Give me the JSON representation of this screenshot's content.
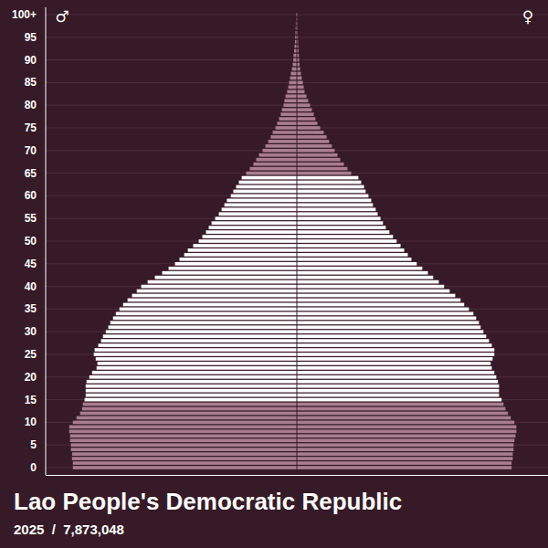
{
  "chart_data": {
    "type": "bar",
    "orientation": "horizontal",
    "title": "Lao People's Democratic Republic",
    "subtitle": "2025  /  7,873,048",
    "categories": [
      0,
      1,
      2,
      3,
      4,
      5,
      6,
      7,
      8,
      9,
      10,
      11,
      12,
      13,
      14,
      15,
      16,
      17,
      18,
      19,
      20,
      21,
      22,
      23,
      24,
      25,
      26,
      27,
      28,
      29,
      30,
      31,
      32,
      33,
      34,
      35,
      36,
      37,
      38,
      39,
      40,
      41,
      42,
      43,
      44,
      45,
      46,
      47,
      48,
      49,
      50,
      51,
      52,
      53,
      54,
      55,
      56,
      57,
      58,
      59,
      60,
      61,
      62,
      63,
      64,
      65,
      66,
      67,
      68,
      69,
      70,
      71,
      72,
      73,
      74,
      75,
      76,
      77,
      78,
      79,
      80,
      81,
      82,
      83,
      84,
      85,
      86,
      87,
      88,
      89,
      90,
      91,
      92,
      93,
      94,
      95,
      96,
      97,
      98,
      99,
      "100+"
    ],
    "series": [
      {
        "name": "♂",
        "values": [
          80100,
          80100,
          80400,
          80400,
          80800,
          80800,
          81100,
          81100,
          81400,
          81400,
          80100,
          78800,
          77500,
          76800,
          76500,
          75900,
          75500,
          75500,
          75500,
          75200,
          74200,
          73200,
          71600,
          71300,
          71900,
          72600,
          72300,
          71000,
          70000,
          69300,
          68300,
          67400,
          66700,
          65700,
          64700,
          63400,
          62100,
          60500,
          58900,
          57200,
          55600,
          53300,
          50700,
          48100,
          45800,
          43500,
          41900,
          40200,
          38900,
          37000,
          35000,
          33700,
          32400,
          31400,
          30400,
          29100,
          27800,
          26800,
          25800,
          24900,
          23500,
          22600,
          21600,
          20600,
          19600,
          18000,
          16700,
          15400,
          14400,
          13400,
          12100,
          11100,
          10100,
          9200,
          8500,
          7500,
          6900,
          6200,
          5600,
          5200,
          4600,
          4300,
          3900,
          3300,
          2900,
          2600,
          2300,
          2000,
          1600,
          1300,
          1100,
          1000,
          800,
          650,
          520,
          420,
          330,
          260,
          200,
          130,
          160
        ],
        "colors": [
          "#a87d90",
          "#a87d90",
          "#a87d90",
          "#a87d90",
          "#a87d90",
          "#a87d90",
          "#a87d90",
          "#a87d90",
          "#a87d90",
          "#a87d90",
          "#a87d90",
          "#a87d90",
          "#a87d90",
          "#a87d90",
          "#a87d90",
          "#ffffff",
          "#ffffff",
          "#ffffff",
          "#ffffff",
          "#ffffff",
          "#ffffff",
          "#ffffff",
          "#ffffff",
          "#ffffff",
          "#ffffff",
          "#ffffff",
          "#ffffff",
          "#ffffff",
          "#ffffff",
          "#ffffff",
          "#ffffff",
          "#ffffff",
          "#ffffff",
          "#ffffff",
          "#ffffff",
          "#ffffff",
          "#ffffff",
          "#ffffff",
          "#ffffff",
          "#ffffff",
          "#ffffff",
          "#ffffff",
          "#ffffff",
          "#ffffff",
          "#ffffff",
          "#ffffff",
          "#ffffff",
          "#ffffff",
          "#ffffff",
          "#ffffff",
          "#ffffff",
          "#ffffff",
          "#ffffff",
          "#ffffff",
          "#ffffff",
          "#ffffff",
          "#ffffff",
          "#ffffff",
          "#ffffff",
          "#ffffff",
          "#ffffff",
          "#ffffff",
          "#ffffff",
          "#ffffff",
          "#ffffff",
          "#a87d90",
          "#a87d90",
          "#a87d90",
          "#a87d90",
          "#a87d90",
          "#a87d90",
          "#a87d90",
          "#a87d90",
          "#a87d90",
          "#a87d90",
          "#a87d90",
          "#a87d90",
          "#a87d90",
          "#a87d90",
          "#a87d90",
          "#a87d90",
          "#a87d90",
          "#a87d90",
          "#a87d90",
          "#a87d90",
          "#a87d90",
          "#a87d90",
          "#a87d90",
          "#a87d90",
          "#a87d90",
          "#a87d90",
          "#a87d90",
          "#a87d90",
          "#a87d90",
          "#a87d90",
          "#a87d90",
          "#a87d90",
          "#a87d90",
          "#a87d90",
          "#a87d90",
          "#a87d90"
        ]
      },
      {
        "name": "♀",
        "values": [
          76800,
          76800,
          77200,
          77200,
          77500,
          77500,
          77800,
          78200,
          78500,
          78500,
          77800,
          76500,
          75500,
          74600,
          73900,
          73200,
          72300,
          72300,
          72300,
          71900,
          71300,
          70600,
          69700,
          69300,
          70000,
          70600,
          70600,
          69700,
          68700,
          67700,
          66700,
          65700,
          65100,
          64100,
          63100,
          61500,
          59800,
          58500,
          56600,
          54600,
          52600,
          50700,
          48700,
          46800,
          44800,
          42800,
          40900,
          39600,
          38300,
          37000,
          35600,
          34300,
          33000,
          31700,
          30700,
          29800,
          28800,
          28100,
          27100,
          26500,
          25500,
          24500,
          23900,
          22900,
          21900,
          19300,
          18000,
          16700,
          15400,
          14400,
          13400,
          12400,
          11400,
          10500,
          9500,
          8200,
          7200,
          6500,
          5900,
          5200,
          4600,
          3900,
          3300,
          2600,
          2300,
          2000,
          1600,
          1300,
          1000,
          800,
          650,
          560,
          460,
          360,
          290,
          230,
          160,
          130,
          100,
          65,
          100
        ],
        "colors": [
          "#a87d90",
          "#a87d90",
          "#a87d90",
          "#a87d90",
          "#a87d90",
          "#a87d90",
          "#a87d90",
          "#a87d90",
          "#a87d90",
          "#a87d90",
          "#a87d90",
          "#a87d90",
          "#a87d90",
          "#a87d90",
          "#a87d90",
          "#ffffff",
          "#ffffff",
          "#ffffff",
          "#ffffff",
          "#ffffff",
          "#ffffff",
          "#ffffff",
          "#ffffff",
          "#ffffff",
          "#ffffff",
          "#ffffff",
          "#ffffff",
          "#ffffff",
          "#ffffff",
          "#ffffff",
          "#ffffff",
          "#ffffff",
          "#ffffff",
          "#ffffff",
          "#ffffff",
          "#ffffff",
          "#ffffff",
          "#ffffff",
          "#ffffff",
          "#ffffff",
          "#ffffff",
          "#ffffff",
          "#ffffff",
          "#ffffff",
          "#ffffff",
          "#ffffff",
          "#ffffff",
          "#ffffff",
          "#ffffff",
          "#ffffff",
          "#ffffff",
          "#ffffff",
          "#ffffff",
          "#ffffff",
          "#ffffff",
          "#ffffff",
          "#ffffff",
          "#ffffff",
          "#ffffff",
          "#ffffff",
          "#ffffff",
          "#ffffff",
          "#ffffff",
          "#ffffff",
          "#ffffff",
          "#a87d90",
          "#a87d90",
          "#a87d90",
          "#a87d90",
          "#a87d90",
          "#a87d90",
          "#a87d90",
          "#a87d90",
          "#a87d90",
          "#a87d90",
          "#a87d90",
          "#a87d90",
          "#a87d90",
          "#a87d90",
          "#a87d90",
          "#a87d90",
          "#a87d90",
          "#a87d90",
          "#a87d90",
          "#a87d90",
          "#a87d90",
          "#a87d90",
          "#a87d90",
          "#a87d90",
          "#a87d90",
          "#a87d90",
          "#a87d90",
          "#a87d90",
          "#a87d90",
          "#a87d90",
          "#a87d90",
          "#a87d90",
          "#a87d90",
          "#a87d90",
          "#a87d90",
          "#a87d90"
        ]
      }
    ],
    "xlim": [
      0,
      90000
    ],
    "yticks": [
      0,
      5,
      10,
      15,
      20,
      25,
      30,
      35,
      40,
      45,
      50,
      55,
      60,
      65,
      70,
      75,
      80,
      85,
      90,
      95,
      {
        "value": 100,
        "label": "100+"
      }
    ],
    "grid": true,
    "tick_labels": "y"
  }
}
